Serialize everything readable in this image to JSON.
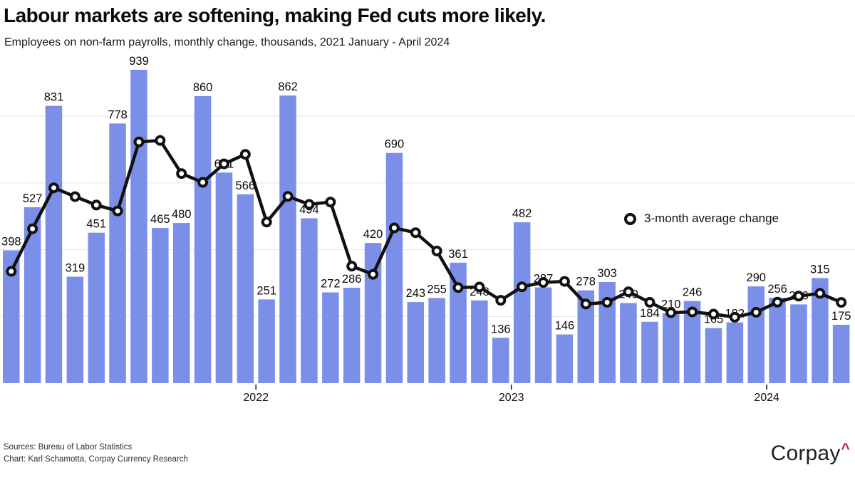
{
  "chart_data": {
    "type": "bar+line",
    "title": "Labour markets are softening, making Fed cuts more likely.",
    "subtitle": "Employees on non-farm payrolls, monthly change, thousands, 2021 January - April 2024",
    "categories": [
      "2021-01",
      "2021-02",
      "2021-03",
      "2021-04",
      "2021-05",
      "2021-06",
      "2021-07",
      "2021-08",
      "2021-09",
      "2021-10",
      "2021-11",
      "2021-12",
      "2022-01",
      "2022-02",
      "2022-03",
      "2022-04",
      "2022-05",
      "2022-06",
      "2022-07",
      "2022-08",
      "2022-09",
      "2022-10",
      "2022-11",
      "2022-12",
      "2023-01",
      "2023-02",
      "2023-03",
      "2023-04",
      "2023-05",
      "2023-06",
      "2023-07",
      "2023-08",
      "2023-09",
      "2023-10",
      "2023-11",
      "2023-12",
      "2024-01",
      "2024-02",
      "2024-03",
      "2024-04"
    ],
    "series": [
      {
        "name": "Monthly change",
        "type": "bar",
        "values": [
          398,
          527,
          831,
          319,
          451,
          778,
          939,
          465,
          480,
          860,
          631,
          566,
          251,
          862,
          494,
          272,
          286,
          420,
          690,
          243,
          255,
          361,
          248,
          136,
          482,
          287,
          146,
          278,
          303,
          240,
          184,
          210,
          246,
          165,
          182,
          290,
          256,
          236,
          315,
          175
        ],
        "data_labels_shown": true
      },
      {
        "name": "3-month average change",
        "type": "line",
        "values": [
          335,
          462.5,
          585.3,
          559,
          533.7,
          516,
          722.7,
          727.3,
          628,
          601.7,
          657,
          685.7,
          482.7,
          559.7,
          535.7,
          542.7,
          350.7,
          326,
          465.3,
          451,
          396,
          286.3,
          288,
          248.3,
          288.7,
          301.7,
          305,
          237,
          242.3,
          273.7,
          242.3,
          211.3,
          213.3,
          207,
          197.7,
          212.3,
          242.7,
          260.7,
          269,
          242
        ]
      }
    ],
    "x_axis": {
      "tick_labels": [
        "2022",
        "2023",
        "2024"
      ],
      "tick_at_categories": [
        "2022-01",
        "2023-01",
        "2024-01"
      ]
    },
    "y_axis": {
      "range": [
        0,
        960
      ],
      "gridlines": [
        200,
        400,
        600,
        800
      ],
      "tick_labels_shown": false
    },
    "legend": {
      "position": "middle-right"
    }
  },
  "footer": {
    "sources": "Sources: Bureau of Labor Statistics",
    "credit": "Chart: Karl Schamotta, Corpay Currency Research"
  },
  "logo": {
    "text": "Corpay",
    "caret": "^"
  },
  "colors": {
    "bar": "#7B8FE8",
    "line": "#111111",
    "marker_fill": "#ffffff",
    "grid": "#e8e8e8",
    "tick": "#111111",
    "caret_red": "#B91D47"
  }
}
